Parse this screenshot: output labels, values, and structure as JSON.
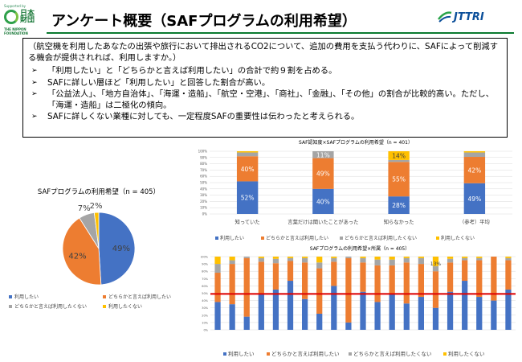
{
  "header": {
    "logo_left": {
      "supported_by": "Supported by",
      "name": "日本財団",
      "foundation": "THE NIPPON FOUNDATION"
    },
    "title": "アンケート概要（SAFプログラムの利用希望）",
    "logo_right": {
      "name": "JTTRI"
    },
    "accent_color": "#0b7a2f"
  },
  "summary": {
    "question": "（航空機を利用したあなたの出張や旅行において排出されるCO2について、追加の費用を支払う代わりに、SAFによって削減する機会が提供されれば、利用しますか。）",
    "bullets": [
      "「利用したい」と「どちらかと言えば利用したい」の合計で約９割を占める。",
      "SAFに詳しい層ほど「利用したい」と回答した割合が高い。",
      "「公益法人」、「地方自治体」、「海運・造船」、「航空・空港」、「商社」、「金融」、「その他」の割合が比較的高い。ただし、「海運・造船」は二極化の傾向。",
      "SAFに詳しくない業種に対しても、一定程度SAFの重要性は伝わったと考えられる。"
    ]
  },
  "legend": {
    "items": [
      "利用したい",
      "どちらかと言えば利用したい",
      "どちらかと言えば利用したくない",
      "利用したくない"
    ],
    "colors": [
      "#4472c4",
      "#ed7d31",
      "#a5a5a5",
      "#ffc000"
    ]
  },
  "chart_data": [
    {
      "type": "pie",
      "title": "SAFプログラムの利用希望（n = 405）",
      "categories": [
        "利用したい",
        "どちらかと言えば利用したい",
        "どちらかと言えば利用したくない",
        "利用したくない"
      ],
      "values": [
        49,
        42,
        7,
        2
      ],
      "value_labels": [
        "49%",
        "42%",
        "7%",
        "2%"
      ]
    },
    {
      "type": "bar",
      "stacked": true,
      "title": "SAF認知度×SAFプログラムの利用希望（n = 401）",
      "categories": [
        "知っていた",
        "言葉だけは聞いたことがあった",
        "知らなかった",
        "（参考）平均"
      ],
      "series": [
        {
          "name": "利用したい",
          "values": [
            52,
            40,
            28,
            49
          ],
          "labels": [
            "52%",
            "40%",
            "28%",
            "49%"
          ]
        },
        {
          "name": "どちらかと言えば利用したい",
          "values": [
            40,
            49,
            55,
            42
          ],
          "labels": [
            "40%",
            "49%",
            "55%",
            "42%"
          ]
        },
        {
          "name": "どちらかと言えば利用したくない",
          "values": [
            6,
            11,
            3,
            7
          ],
          "labels": [
            "",
            "11%",
            "",
            ""
          ]
        },
        {
          "name": "利用したくない",
          "values": [
            2,
            0,
            14,
            2
          ],
          "labels": [
            "",
            "",
            "14%",
            ""
          ]
        }
      ],
      "yticks": [
        "0%",
        "10%",
        "20%",
        "30%",
        "40%",
        "50%",
        "60%",
        "70%",
        "80%",
        "90%",
        "100%"
      ],
      "ylim": [
        0,
        100
      ]
    },
    {
      "type": "bar",
      "stacked": true,
      "title": "SAFプログラムの利用希望×所属（n = 405）",
      "categories": [
        "",
        "",
        "",
        "",
        "",
        "",
        "",
        "",
        "",
        "",
        "",
        "",
        "",
        "",
        "",
        "",
        "",
        "",
        "",
        "",
        ""
      ],
      "series": [
        {
          "name": "利用したい",
          "values": [
            38,
            35,
            18,
            50,
            55,
            67,
            42,
            22,
            60,
            10,
            52,
            38,
            50,
            36,
            45,
            30,
            52,
            67,
            45,
            40,
            55
          ]
        },
        {
          "name": "どちらかと言えば利用したい",
          "values": [
            40,
            55,
            80,
            43,
            36,
            27,
            50,
            62,
            33,
            88,
            40,
            50,
            38,
            56,
            45,
            50,
            40,
            28,
            50,
            60,
            40
          ]
        },
        {
          "name": "どちらかと言えば利用したくない",
          "values": [
            12,
            5,
            2,
            5,
            6,
            4,
            6,
            8,
            5,
            2,
            6,
            8,
            8,
            6,
            8,
            7,
            5,
            3,
            3,
            0,
            3
          ]
        },
        {
          "name": "利用したくない",
          "values": [
            10,
            5,
            0,
            2,
            3,
            2,
            2,
            8,
            2,
            0,
            2,
            4,
            4,
            2,
            2,
            13,
            3,
            2,
            2,
            0,
            2
          ]
        }
      ],
      "bar_labels": [
        "",
        "",
        "",
        "",
        "",
        "",
        "",
        "",
        "",
        "",
        "",
        "",
        "",
        "",
        "",
        "13%",
        "",
        "",
        "",
        "",
        ""
      ],
      "reference_line": 49,
      "yticks": [
        "0%",
        "10%",
        "20%",
        "30%",
        "40%",
        "50%",
        "60%",
        "70%",
        "80%",
        "90%",
        "100%"
      ],
      "ylim": [
        0,
        100
      ]
    }
  ]
}
